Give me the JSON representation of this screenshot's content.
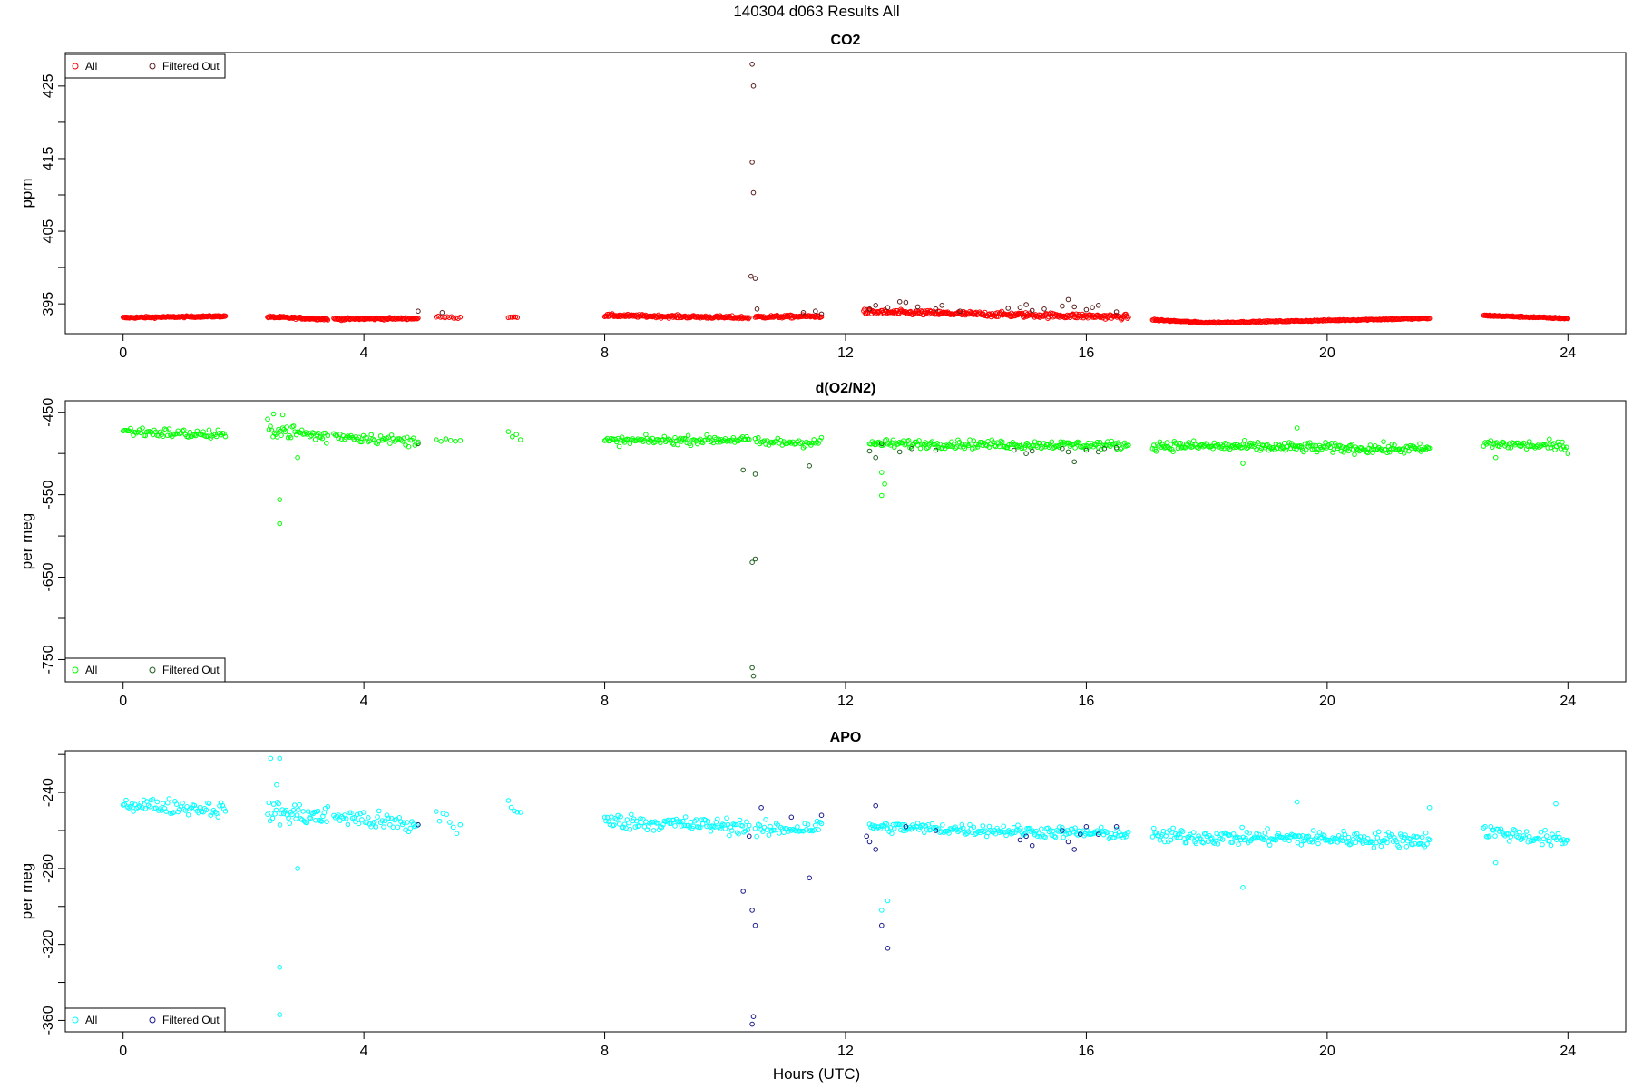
{
  "figure": {
    "title": "140304   d063   Results All",
    "xlabel": "Hours (UTC)"
  },
  "chart_data": [
    {
      "type": "scatter",
      "title": "CO2",
      "ylabel": "ppm",
      "xlim": [
        -0.96,
        24.96
      ],
      "ylim": [
        390.9,
        429.6
      ],
      "x_ticks": [
        0,
        4,
        8,
        12,
        16,
        20,
        24
      ],
      "y_ticks": [
        395,
        405,
        415,
        425
      ],
      "y_minor_ticks": [
        400,
        410,
        420
      ],
      "colors": {
        "all": "#ff0000",
        "filtered": "#5a1d1d"
      },
      "legend": {
        "position": "top-left",
        "entries": [
          "All",
          "Filtered Out"
        ]
      },
      "series": [
        {
          "name": "All",
          "segments": [
            {
              "x": [
                0.0,
                1.7
              ],
              "y": [
                393.1,
                393.3
              ],
              "n": 130,
              "jitter": 0.12
            },
            {
              "x": [
                2.4,
                3.4
              ],
              "y": [
                393.2,
                392.9
              ],
              "n": 80,
              "jitter": 0.15
            },
            {
              "x": [
                3.5,
                4.9
              ],
              "y": [
                392.9,
                393.0
              ],
              "n": 90,
              "jitter": 0.15
            },
            {
              "x": [
                5.2,
                5.6
              ],
              "y": [
                393.2,
                393.1
              ],
              "n": 12,
              "jitter": 0.12
            },
            {
              "x": [
                6.4,
                6.55
              ],
              "y": [
                393.2,
                393.2
              ],
              "n": 6,
              "jitter": 0.1
            },
            {
              "x": [
                8.0,
                10.4
              ],
              "y": [
                393.4,
                393.1
              ],
              "n": 170,
              "jitter": 0.2
            },
            {
              "x": [
                10.5,
                11.6
              ],
              "y": [
                393.2,
                393.3
              ],
              "n": 80,
              "jitter": 0.2
            },
            {
              "x": [
                12.3,
                16.7
              ],
              "y": [
                393.9,
                393.2
              ],
              "n": 300,
              "jitter": 0.35
            },
            {
              "x": [
                17.1,
                18.0
              ],
              "y": [
                392.8,
                392.4
              ],
              "n": 60,
              "jitter": 0.1
            },
            {
              "x": [
                18.0,
                21.7
              ],
              "y": [
                392.4,
                393.0
              ],
              "n": 220,
              "jitter": 0.1
            },
            {
              "x": [
                22.6,
                24.0
              ],
              "y": [
                393.4,
                393.0
              ],
              "n": 100,
              "jitter": 0.1
            }
          ]
        },
        {
          "name": "Filtered Out",
          "points": [
            [
              4.9,
              394.0
            ],
            [
              5.3,
              393.8
            ],
            [
              10.45,
              428.0
            ],
            [
              10.47,
              425.0
            ],
            [
              10.45,
              414.5
            ],
            [
              10.47,
              410.3
            ],
            [
              10.43,
              398.8
            ],
            [
              10.5,
              398.5
            ],
            [
              10.53,
              394.3
            ],
            [
              11.3,
              393.8
            ],
            [
              11.5,
              394.0
            ],
            [
              11.6,
              393.6
            ],
            [
              12.4,
              394.3
            ],
            [
              12.5,
              394.8
            ],
            [
              12.7,
              394.5
            ],
            [
              12.9,
              395.3
            ],
            [
              13.0,
              395.2
            ],
            [
              13.2,
              394.6
            ],
            [
              13.5,
              394.3
            ],
            [
              13.6,
              394.8
            ],
            [
              13.9,
              394.0
            ],
            [
              14.7,
              394.4
            ],
            [
              14.9,
              394.5
            ],
            [
              15.0,
              394.9
            ],
            [
              15.1,
              394.1
            ],
            [
              15.3,
              394.3
            ],
            [
              15.6,
              394.7
            ],
            [
              15.7,
              395.6
            ],
            [
              15.8,
              394.6
            ],
            [
              16.0,
              394.2
            ],
            [
              16.1,
              394.5
            ],
            [
              16.2,
              394.8
            ],
            [
              16.5,
              393.9
            ]
          ]
        }
      ]
    },
    {
      "type": "scatter",
      "title": "d(O2/N2)",
      "ylabel": "per meg",
      "xlim": [
        -0.96,
        24.96
      ],
      "ylim": [
        -777,
        -436
      ],
      "x_ticks": [
        0,
        4,
        8,
        12,
        16,
        20,
        24
      ],
      "y_ticks": [
        -450,
        -550,
        -650,
        -750
      ],
      "y_minor_ticks": [
        -500,
        -600,
        -700
      ],
      "colors": {
        "all": "#00ff00",
        "filtered": "#1f5f1f"
      },
      "legend": {
        "position": "bottom-left",
        "entries": [
          "All",
          "Filtered Out"
        ]
      },
      "series": [
        {
          "name": "All",
          "segments": [
            {
              "x": [
                0.0,
                1.7
              ],
              "y": [
                -473,
                -478
              ],
              "n": 70,
              "jitter": 6
            },
            {
              "x": [
                2.4,
                3.4
              ],
              "y": [
                -470,
                -480
              ],
              "n": 45,
              "jitter": 9
            },
            {
              "x": [
                3.5,
                4.9
              ],
              "y": [
                -478,
                -486
              ],
              "n": 55,
              "jitter": 6
            },
            {
              "x": [
                5.2,
                5.6
              ],
              "y": [
                -478,
                -485
              ],
              "n": 6,
              "jitter": 6
            },
            {
              "x": [
                6.4,
                6.6
              ],
              "y": [
                -475,
                -485
              ],
              "n": 4,
              "jitter": 8
            },
            {
              "x": [
                8.0,
                10.4
              ],
              "y": [
                -485,
                -483
              ],
              "n": 110,
              "jitter": 5
            },
            {
              "x": [
                10.5,
                11.6
              ],
              "y": [
                -487,
                -486
              ],
              "n": 45,
              "jitter": 6
            },
            {
              "x": [
                12.4,
                16.7
              ],
              "y": [
                -488,
                -490
              ],
              "n": 200,
              "jitter": 5
            },
            {
              "x": [
                17.1,
                21.7
              ],
              "y": [
                -490,
                -495
              ],
              "n": 230,
              "jitter": 6
            },
            {
              "x": [
                22.6,
                24.0
              ],
              "y": [
                -488,
                -492
              ],
              "n": 60,
              "jitter": 6
            }
          ]
        },
        {
          "name": "All",
          "points": [
            [
              2.5,
              -452
            ],
            [
              2.65,
              -453
            ],
            [
              2.6,
              -556
            ],
            [
              2.6,
              -585
            ],
            [
              2.9,
              -505
            ],
            [
              12.6,
              -523
            ],
            [
              12.65,
              -537
            ],
            [
              12.6,
              -551
            ],
            [
              18.6,
              -512
            ],
            [
              19.5,
              -469
            ],
            [
              22.8,
              -505
            ]
          ]
        },
        {
          "name": "Filtered Out",
          "points": [
            [
              4.9,
              -488
            ],
            [
              10.3,
              -520
            ],
            [
              10.5,
              -525
            ],
            [
              10.45,
              -632
            ],
            [
              10.5,
              -628
            ],
            [
              10.45,
              -760
            ],
            [
              10.47,
              -770
            ],
            [
              11.4,
              -515
            ],
            [
              12.4,
              -497
            ],
            [
              12.5,
              -505
            ],
            [
              12.6,
              -488
            ],
            [
              12.9,
              -498
            ],
            [
              13.1,
              -494
            ],
            [
              13.5,
              -496
            ],
            [
              14.8,
              -496
            ],
            [
              15.0,
              -500
            ],
            [
              15.1,
              -497
            ],
            [
              15.6,
              -494
            ],
            [
              15.7,
              -498
            ],
            [
              15.8,
              -510
            ],
            [
              16.0,
              -496
            ],
            [
              16.2,
              -498
            ],
            [
              16.3,
              -494
            ],
            [
              16.5,
              -493
            ]
          ]
        }
      ]
    },
    {
      "type": "scatter",
      "title": "APO",
      "ylabel": "per meg",
      "xlim": [
        -0.96,
        24.96
      ],
      "ylim": [
        -366,
        -218
      ],
      "x_ticks": [
        0,
        4,
        8,
        12,
        16,
        20,
        24
      ],
      "y_ticks": [
        -240,
        -280,
        -320,
        -360
      ],
      "y_minor_ticks": [
        -220,
        -260,
        -300,
        -340
      ],
      "colors": {
        "all": "#00ffff",
        "filtered": "#1a1a8c"
      },
      "legend": {
        "position": "bottom-left",
        "entries": [
          "All",
          "Filtered Out"
        ]
      },
      "series": [
        {
          "name": "All",
          "segments": [
            {
              "x": [
                0.0,
                1.7
              ],
              "y": [
                -246,
                -249
              ],
              "n": 70,
              "jitter": 4
            },
            {
              "x": [
                2.4,
                3.4
              ],
              "y": [
                -250,
                -253
              ],
              "n": 50,
              "jitter": 6
            },
            {
              "x": [
                3.5,
                4.9
              ],
              "y": [
                -252,
                -258
              ],
              "n": 55,
              "jitter": 5
            },
            {
              "x": [
                5.2,
                5.6
              ],
              "y": [
                -250,
                -258
              ],
              "n": 8,
              "jitter": 6
            },
            {
              "x": [
                6.4,
                6.6
              ],
              "y": [
                -245,
                -255
              ],
              "n": 5,
              "jitter": 8
            },
            {
              "x": [
                8.0,
                10.4
              ],
              "y": [
                -255,
                -258
              ],
              "n": 110,
              "jitter": 4
            },
            {
              "x": [
                10.5,
                11.6
              ],
              "y": [
                -260,
                -258
              ],
              "n": 45,
              "jitter": 4
            },
            {
              "x": [
                12.4,
                16.7
              ],
              "y": [
                -258,
                -262
              ],
              "n": 200,
              "jitter": 3
            },
            {
              "x": [
                17.1,
                21.7
              ],
              "y": [
                -263,
                -265
              ],
              "n": 230,
              "jitter": 4
            },
            {
              "x": [
                22.6,
                24.0
              ],
              "y": [
                -260,
                -266
              ],
              "n": 60,
              "jitter": 4
            }
          ]
        },
        {
          "name": "All",
          "points": [
            [
              2.45,
              -222
            ],
            [
              2.6,
              -222
            ],
            [
              2.55,
              -236
            ],
            [
              2.6,
              -332
            ],
            [
              2.6,
              -357
            ],
            [
              2.9,
              -280
            ],
            [
              12.6,
              -302
            ],
            [
              12.7,
              -297
            ],
            [
              18.6,
              -290
            ],
            [
              19.5,
              -245
            ],
            [
              21.7,
              -248
            ],
            [
              22.8,
              -277
            ],
            [
              23.8,
              -246
            ]
          ]
        },
        {
          "name": "Filtered Out",
          "points": [
            [
              4.9,
              -257
            ],
            [
              10.3,
              -292
            ],
            [
              10.45,
              -302
            ],
            [
              10.5,
              -310
            ],
            [
              10.45,
              -362
            ],
            [
              10.47,
              -358
            ],
            [
              10.4,
              -263
            ],
            [
              10.6,
              -248
            ],
            [
              11.1,
              -253
            ],
            [
              11.4,
              -285
            ],
            [
              11.6,
              -252
            ],
            [
              12.35,
              -263
            ],
            [
              12.4,
              -266
            ],
            [
              12.5,
              -270
            ],
            [
              12.5,
              -247
            ],
            [
              12.6,
              -310
            ],
            [
              12.7,
              -322
            ],
            [
              13.0,
              -258
            ],
            [
              13.5,
              -260
            ],
            [
              14.9,
              -265
            ],
            [
              15.0,
              -263
            ],
            [
              15.1,
              -268
            ],
            [
              15.6,
              -260
            ],
            [
              15.7,
              -266
            ],
            [
              15.8,
              -270
            ],
            [
              15.9,
              -262
            ],
            [
              16.0,
              -258
            ],
            [
              16.2,
              -262
            ],
            [
              16.5,
              -258
            ]
          ]
        }
      ]
    }
  ]
}
